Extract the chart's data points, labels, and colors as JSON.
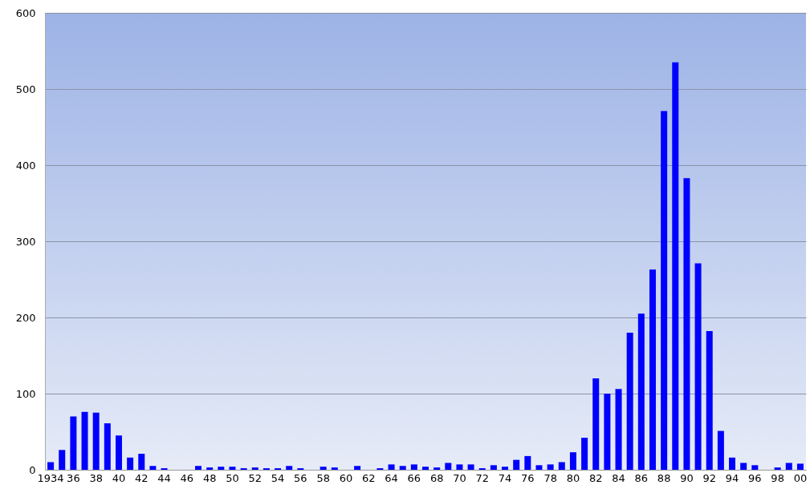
{
  "chart_data": {
    "type": "bar",
    "categories": [
      "1934",
      null,
      "36",
      null,
      "38",
      null,
      "40",
      null,
      "42",
      null,
      "44",
      null,
      "46",
      null,
      "48",
      null,
      "50",
      null,
      "52",
      null,
      "54",
      null,
      "56",
      null,
      "58",
      null,
      "60",
      null,
      "62",
      null,
      "64",
      null,
      "66",
      null,
      "68",
      null,
      "70",
      null,
      "72",
      null,
      "74",
      null,
      "76",
      null,
      "78",
      null,
      "80",
      null,
      "82",
      null,
      "84",
      null,
      "86",
      null,
      "88",
      null,
      "90",
      null,
      "92",
      null,
      "94",
      null,
      "96",
      null,
      "98",
      null,
      "00"
    ],
    "values": [
      10,
      26,
      70,
      76,
      75,
      61,
      45,
      16,
      21,
      5,
      2,
      0,
      0,
      5,
      3,
      4,
      4,
      2,
      3,
      2,
      2,
      5,
      2,
      0,
      4,
      3,
      0,
      5,
      0,
      2,
      7,
      5,
      7,
      4,
      3,
      9,
      7,
      7,
      2,
      6,
      4,
      13,
      18,
      6,
      7,
      10,
      23,
      42,
      120,
      100,
      106,
      180,
      205,
      263,
      471,
      535,
      383,
      271,
      182,
      51,
      16,
      9,
      6,
      0,
      3,
      9,
      8
    ],
    "color": "#0000ff",
    "ylim": [
      0,
      600
    ],
    "yticks": [
      0,
      100,
      200,
      300,
      400,
      500,
      600
    ],
    "grid": "y"
  }
}
